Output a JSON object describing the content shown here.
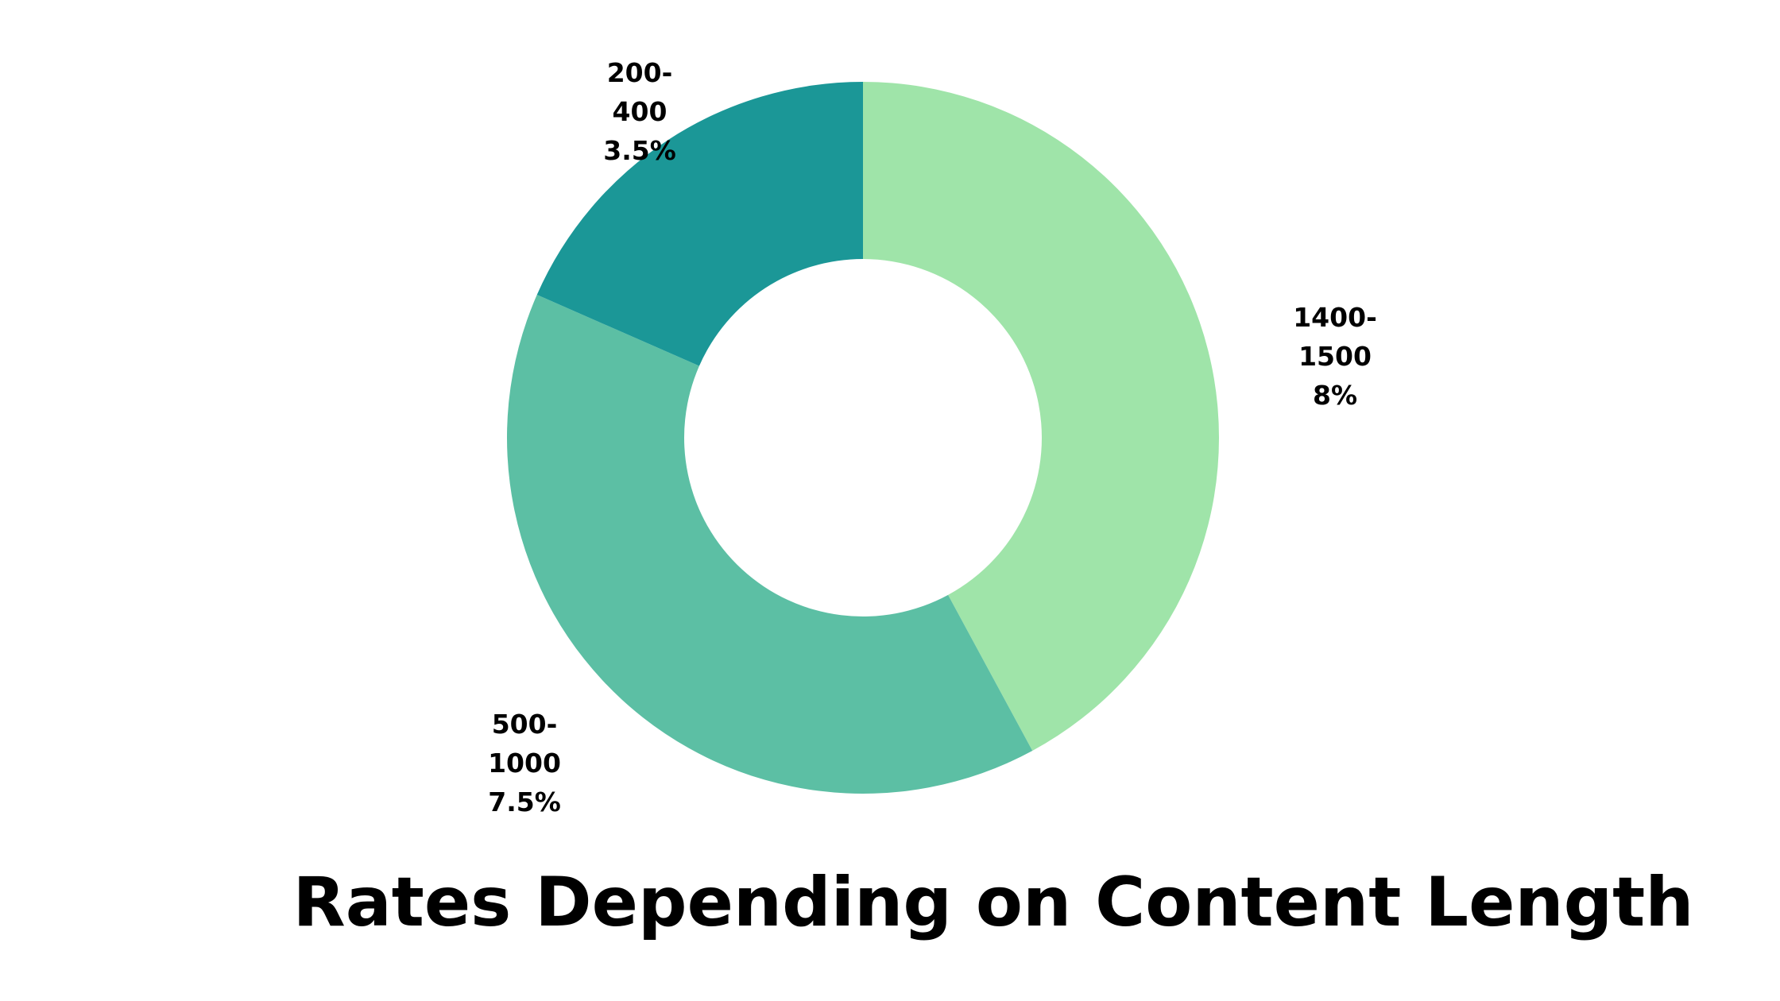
{
  "chart_data": {
    "type": "pie",
    "variant": "donut",
    "title": "Rates Depending on Content Length",
    "slices": [
      {
        "category_lines": [
          "1400-",
          "1500"
        ],
        "value_label": "8%",
        "value": 8,
        "color": "#9fe4a9"
      },
      {
        "category_lines": [
          "500-",
          "1000"
        ],
        "value_label": "7.5%",
        "value": 7.5,
        "color": "#5cbfa4"
      },
      {
        "category_lines": [
          "200-",
          "400"
        ],
        "value_label": "3.5%",
        "value": 3.5,
        "color": "#1b9797"
      }
    ],
    "start_angle_deg": 0,
    "direction": "clockwise",
    "legend": "none",
    "labels_outside": true
  }
}
